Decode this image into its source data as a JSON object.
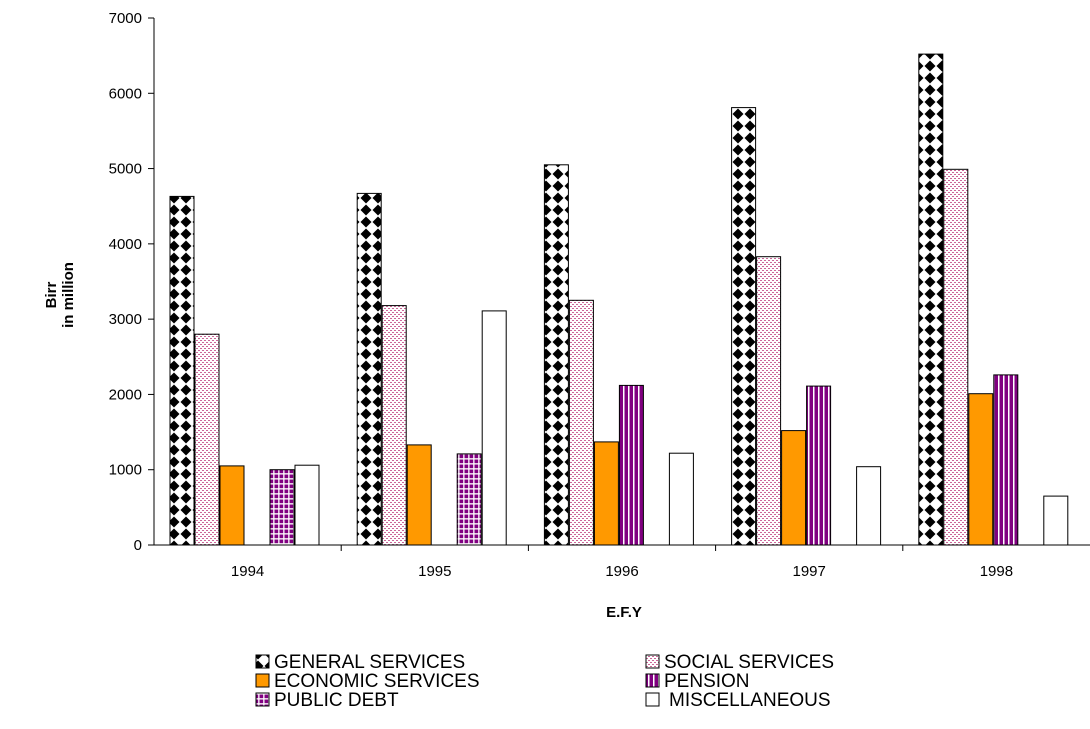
{
  "chart_data": {
    "type": "bar",
    "title": "",
    "xlabel": "E.F.Y",
    "ylabel_lines": [
      "Birr",
      "in million"
    ],
    "ylim": [
      0,
      7000
    ],
    "yticks": [
      0,
      1000,
      2000,
      3000,
      4000,
      5000,
      6000,
      7000
    ],
    "grid": false,
    "legend_position": "bottom",
    "categories": [
      "1994",
      "1995",
      "1996",
      "1997",
      "1998"
    ],
    "series": [
      {
        "name": "GENERAL SERVICES",
        "values": [
          4630,
          4670,
          5050,
          5810,
          6520
        ],
        "pattern": "diamonds",
        "color": "#000000"
      },
      {
        "name": "SOCIAL SERVICES",
        "values": [
          2800,
          3180,
          3250,
          3830,
          4990
        ],
        "pattern": "dots",
        "color": "#cc6699"
      },
      {
        "name": "ECONOMIC SERVICES",
        "values": [
          1050,
          1330,
          1370,
          1520,
          2010
        ],
        "pattern": "solid",
        "color": "#ff9900"
      },
      {
        "name": "PENSION",
        "values": [
          null,
          null,
          2120,
          2110,
          2260
        ],
        "pattern": "vstripes",
        "color": "#800080"
      },
      {
        "name": "PUBLIC DEBT",
        "values": [
          1000,
          1210,
          null,
          null,
          null
        ],
        "pattern": "grid",
        "color": "#800080"
      },
      {
        "name": "MISCELLANEOUS",
        "values": [
          1060,
          3110,
          1220,
          1040,
          650
        ],
        "pattern": "none",
        "color": "#ffffff"
      }
    ]
  }
}
